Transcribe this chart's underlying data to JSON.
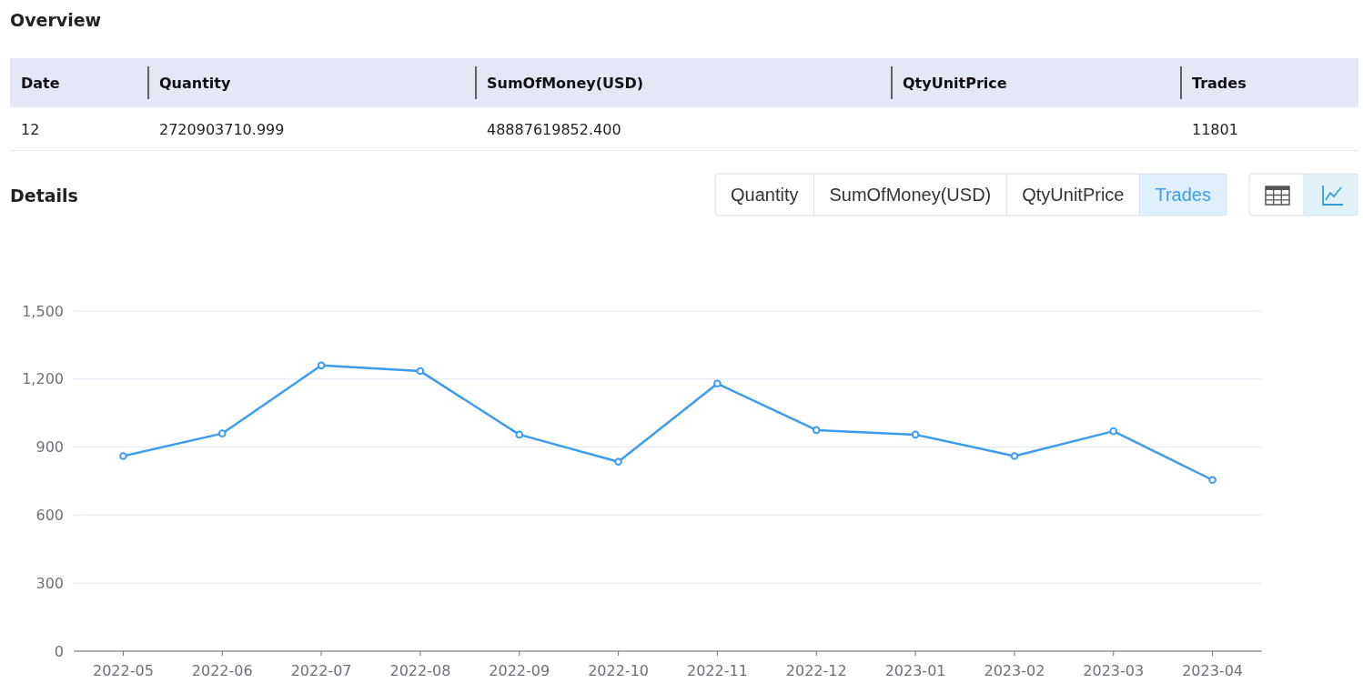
{
  "chart_data": [
    {
      "type": "other",
      "title": "Overview",
      "categories": [
        "Date",
        "Quantity",
        "SumOfMoney(USD)",
        "QtyUnitPrice",
        "Trades"
      ],
      "cell_labels": [
        [
          "12",
          "2720903710.999",
          "48887619852.400",
          null,
          "11801"
        ]
      ]
    },
    {
      "type": "line",
      "title": "Details",
      "annotations": [
        "Quantity",
        "SumOfMoney(USD)",
        "QtyUnitPrice"
      ],
      "categories": [
        "2022-05",
        "2022-06",
        "2022-07",
        "2022-08",
        "2022-09",
        "2022-10",
        "2022-11",
        "2022-12",
        "2023-01",
        "2023-02",
        "2023-03",
        "2023-04"
      ],
      "series": [
        {
          "name": "Trades",
          "color": "#3d9cee",
          "values": [
            860,
            960,
            1260,
            1235,
            955,
            835,
            1180,
            975,
            955,
            860,
            970,
            755
          ]
        }
      ],
      "ylim": [
        0,
        1500
      ],
      "yticks": [
        0,
        300,
        600,
        900,
        {
          "value": 1200,
          "label": "1,200"
        },
        {
          "value": 1500,
          "label": "1,500"
        }
      ],
      "grid": "y",
      "marker": "circle"
    }
  ]
}
